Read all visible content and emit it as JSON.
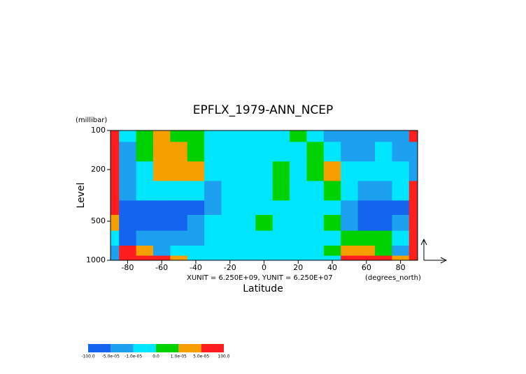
{
  "chart_data": {
    "type": "contour",
    "title": "EPFLX_1979-ANN_NCEP",
    "x_label": "Latitude",
    "x_unit": "(degrees_north)",
    "y_label": "Level",
    "y_unit": "(millibar)",
    "note": "XUNIT = 6.250E+09, YUNIT = 6.250E+07",
    "x": [
      -90,
      -80,
      -70,
      -60,
      -50,
      -40,
      -30,
      -20,
      -10,
      0,
      10,
      20,
      30,
      40,
      50,
      60,
      70,
      80,
      90
    ],
    "y": [
      100,
      150,
      200,
      300,
      400,
      500,
      700,
      850,
      1000
    ],
    "z": [
      [
        7e-05,
        -5e-06,
        5e-06,
        3e-05,
        5e-06,
        5e-06,
        -5e-06,
        -5e-06,
        -5e-06,
        -5e-06,
        -5e-06,
        5e-06,
        -5e-06,
        -3e-05,
        -3e-05,
        -3e-05,
        -3e-05,
        -3e-05,
        7e-05
      ],
      [
        7e-05,
        -3e-05,
        5e-06,
        3e-05,
        3e-05,
        5e-06,
        -5e-06,
        -5e-06,
        -5e-06,
        -5e-06,
        -5e-06,
        -5e-06,
        5e-06,
        -5e-06,
        -3e-05,
        -3e-05,
        -5e-06,
        -3e-05,
        -3e-05
      ],
      [
        7e-05,
        -3e-05,
        -5e-06,
        3e-05,
        3e-05,
        3e-05,
        -5e-06,
        -5e-06,
        -5e-06,
        -5e-06,
        5e-06,
        -5e-06,
        5e-06,
        3e-05,
        -5e-06,
        -5e-06,
        -5e-06,
        -5e-06,
        -3e-05
      ],
      [
        7e-05,
        -3e-05,
        -5e-06,
        -5e-06,
        -5e-06,
        -5e-06,
        -3e-05,
        -5e-06,
        -5e-06,
        -5e-06,
        5e-06,
        -5e-06,
        -5e-06,
        5e-06,
        -5e-06,
        -3e-05,
        -3e-05,
        -5e-06,
        7e-05
      ],
      [
        7e-05,
        -7e-05,
        -7e-05,
        -7e-05,
        -7e-05,
        -7e-05,
        -3e-05,
        -5e-06,
        -5e-06,
        -5e-06,
        -5e-06,
        -5e-06,
        -5e-06,
        -5e-06,
        -3e-05,
        -7e-05,
        -7e-05,
        -7e-05,
        7e-05
      ],
      [
        3e-05,
        -7e-05,
        -7e-05,
        -7e-05,
        -7e-05,
        -3e-05,
        -5e-06,
        -5e-06,
        -5e-06,
        5e-06,
        -5e-06,
        -5e-06,
        -5e-06,
        5e-06,
        -3e-05,
        -7e-05,
        -7e-05,
        -3e-05,
        7e-05
      ],
      [
        -5e-06,
        -7e-05,
        -3e-05,
        -3e-05,
        -3e-05,
        -3e-05,
        -5e-06,
        -5e-06,
        -5e-06,
        -5e-06,
        -5e-06,
        -5e-06,
        -5e-06,
        -5e-06,
        5e-06,
        5e-06,
        5e-06,
        -5e-06,
        7e-05
      ],
      [
        -3e-05,
        7e-05,
        3e-05,
        -3e-05,
        -5e-06,
        -5e-06,
        -5e-06,
        -5e-06,
        -5e-06,
        -5e-06,
        -5e-06,
        -5e-06,
        -5e-06,
        5e-06,
        3e-05,
        3e-05,
        5e-06,
        -3e-05,
        7e-05
      ],
      [
        -3e-05,
        7e-05,
        7e-05,
        7e-05,
        3e-05,
        -5e-06,
        -5e-06,
        -5e-06,
        -5e-06,
        -5e-06,
        -5e-06,
        -5e-06,
        -5e-06,
        -5e-06,
        7e-05,
        7e-05,
        7e-05,
        3e-05,
        7e-05
      ]
    ],
    "xlim": [
      -90,
      90
    ],
    "xticks": [
      -80,
      -60,
      -40,
      -20,
      0,
      20,
      40,
      60,
      80
    ],
    "ylim": [
      100,
      1000
    ],
    "yticks": [
      100,
      200,
      500,
      1000
    ],
    "log_y": true,
    "levels": [
      {
        "value": -100,
        "label": "-100.0"
      },
      {
        "value": -5e-05,
        "label": "-5.0e-05"
      },
      {
        "value": -1e-05,
        "label": "-1.0e-05"
      },
      {
        "value": 0,
        "label": "0.0"
      },
      {
        "value": 1e-05,
        "label": "1.0e-05"
      },
      {
        "value": 5e-05,
        "label": "5.0e-05"
      },
      {
        "value": 100,
        "label": "100.0"
      }
    ],
    "colors": [
      "#1464f0",
      "#1ea0f0",
      "#00e6ff",
      "#00d200",
      "#f5a000",
      "#ff1e1e"
    ]
  }
}
